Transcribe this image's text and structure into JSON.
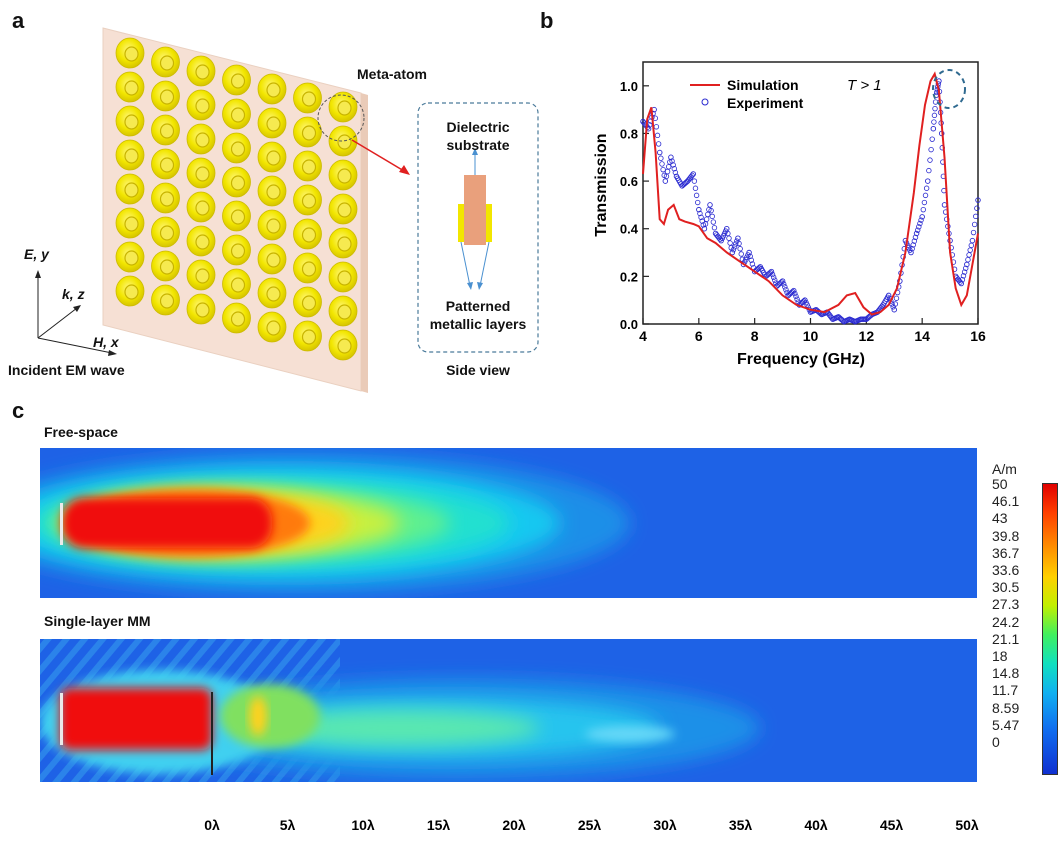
{
  "panel_a": {
    "label": "a",
    "meta_atom_label": "Meta-atom",
    "side_view_top": [
      "Dielectric",
      "substrate"
    ],
    "side_view_bottom": [
      "Patterned",
      "metallic layers"
    ],
    "side_view_caption": "Side view",
    "axis_e": "E, y",
    "axis_k": "k, z",
    "axis_h": "H, x",
    "incident_label": "Incident EM wave",
    "colors": {
      "plate": "#f6e0d4",
      "ring": "#f2e600",
      "ring_dark": "#d8c800",
      "arrow": "#e02020"
    }
  },
  "panel_b": {
    "label": "b",
    "annotation": "T > 1",
    "colors": {
      "simulation": "#e02020",
      "experiment": "#2a2ad0"
    }
  },
  "panel_c": {
    "label": "c",
    "free_space_label": "Free-space",
    "single_layer_label": "Single-layer MM",
    "x_ticks": [
      "0λ",
      "5λ",
      "10λ",
      "15λ",
      "20λ",
      "25λ",
      "30λ",
      "35λ",
      "40λ",
      "45λ",
      "50λ"
    ],
    "colorbar_unit": "A/m",
    "colorbar_ticks": [
      "50",
      "46.1",
      "43",
      "39.8",
      "36.7",
      "33.6",
      "30.5",
      "27.3",
      "24.2",
      "21.1",
      "18",
      "14.8",
      "11.7",
      "8.59",
      "5.47",
      "0"
    ]
  },
  "chart_data": {
    "type": "line",
    "title": "",
    "xlabel": "Frequency (GHz)",
    "ylabel": "Transmission",
    "xlim": [
      4,
      16
    ],
    "ylim": [
      0,
      1.1
    ],
    "x_ticks": [
      4,
      6,
      8,
      10,
      12,
      14,
      16
    ],
    "y_ticks": [
      0.0,
      0.2,
      0.4,
      0.6,
      0.8,
      1.0
    ],
    "legend_position": "top-center",
    "grid": false,
    "series": [
      {
        "name": "Simulation",
        "style": "line",
        "x": [
          4.0,
          4.15,
          4.3,
          4.45,
          4.6,
          4.75,
          4.9,
          5.1,
          5.3,
          5.5,
          5.8,
          6.0,
          6.3,
          6.6,
          7.0,
          7.5,
          8.0,
          8.5,
          9.0,
          9.5,
          10.0,
          10.5,
          11.0,
          11.3,
          11.6,
          11.9,
          12.2,
          12.5,
          12.8,
          13.1,
          13.4,
          13.7,
          13.9,
          14.1,
          14.3,
          14.45,
          14.6,
          14.8,
          15.0,
          15.2,
          15.4,
          15.6,
          15.8,
          16.0
        ],
        "y": [
          0.63,
          0.86,
          0.91,
          0.72,
          0.44,
          0.42,
          0.48,
          0.5,
          0.44,
          0.43,
          0.42,
          0.41,
          0.36,
          0.34,
          0.3,
          0.26,
          0.22,
          0.18,
          0.12,
          0.08,
          0.06,
          0.05,
          0.08,
          0.12,
          0.13,
          0.07,
          0.04,
          0.05,
          0.08,
          0.15,
          0.3,
          0.55,
          0.75,
          0.92,
          1.02,
          1.05,
          0.98,
          0.7,
          0.3,
          0.15,
          0.08,
          0.12,
          0.25,
          0.38
        ]
      },
      {
        "name": "Experiment",
        "style": "scatter",
        "x": [
          4.0,
          4.2,
          4.4,
          4.6,
          4.8,
          5.0,
          5.2,
          5.4,
          5.6,
          5.8,
          6.0,
          6.2,
          6.4,
          6.6,
          6.8,
          7.0,
          7.2,
          7.4,
          7.6,
          7.8,
          8.0,
          8.2,
          8.4,
          8.6,
          8.8,
          9.0,
          9.2,
          9.4,
          9.6,
          9.8,
          10.0,
          10.2,
          10.4,
          10.6,
          10.8,
          11.0,
          11.2,
          11.4,
          11.6,
          11.8,
          12.0,
          12.2,
          12.4,
          12.6,
          12.8,
          13.0,
          13.2,
          13.4,
          13.6,
          13.8,
          14.0,
          14.2,
          14.4,
          14.5,
          14.6,
          14.7,
          14.8,
          15.0,
          15.2,
          15.4,
          15.6,
          15.8,
          16.0
        ],
        "y": [
          0.85,
          0.82,
          0.9,
          0.72,
          0.6,
          0.7,
          0.62,
          0.58,
          0.6,
          0.63,
          0.48,
          0.4,
          0.5,
          0.38,
          0.35,
          0.4,
          0.3,
          0.36,
          0.25,
          0.3,
          0.22,
          0.24,
          0.2,
          0.22,
          0.16,
          0.18,
          0.12,
          0.14,
          0.08,
          0.1,
          0.05,
          0.06,
          0.04,
          0.05,
          0.02,
          0.03,
          0.01,
          0.02,
          0.01,
          0.02,
          0.02,
          0.04,
          0.05,
          0.08,
          0.12,
          0.06,
          0.18,
          0.35,
          0.3,
          0.38,
          0.45,
          0.6,
          0.82,
          0.96,
          1.02,
          0.8,
          0.5,
          0.35,
          0.2,
          0.17,
          0.25,
          0.35,
          0.52
        ]
      }
    ]
  }
}
